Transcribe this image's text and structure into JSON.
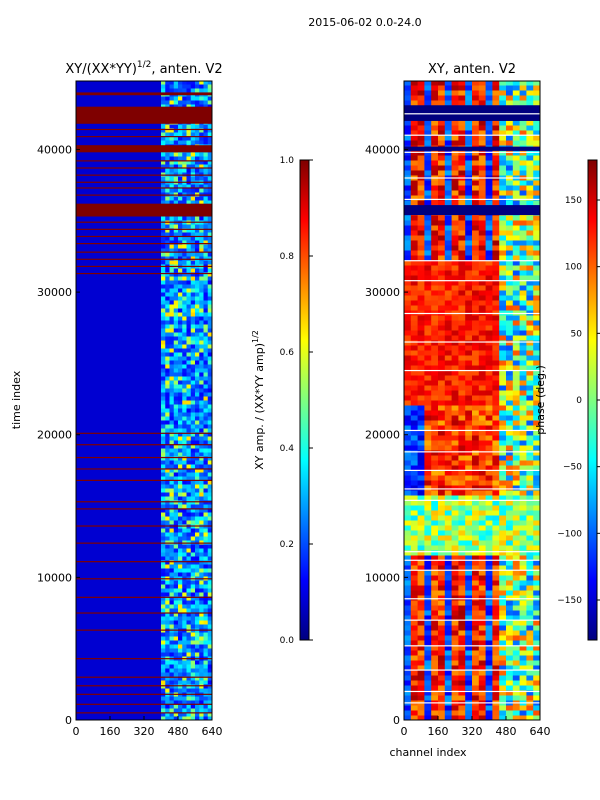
{
  "figure_title": "2015-06-02 0.0-24.0",
  "colors": {
    "flagged": "#7f0000",
    "frame": "#000000",
    "text": "#000000",
    "jet_stops": [
      "#00007f",
      "#0000ff",
      "#007fff",
      "#00ffff",
      "#7fff7f",
      "#ffff00",
      "#ff7f00",
      "#ff0000",
      "#7f0000"
    ]
  },
  "chart_data": [
    {
      "type": "heatmap",
      "id": "amplitude",
      "title_main": "XY/(XX*YY)",
      "title_exp": "1/2",
      "title_tail": ", anten. V2",
      "xlabel": "",
      "ylabel": "time index",
      "xlim": [
        0,
        640
      ],
      "ylim": [
        0,
        44800
      ],
      "xticks": [
        0,
        160,
        320,
        480,
        640
      ],
      "yticks": [
        0,
        10000,
        20000,
        30000,
        40000
      ],
      "colorbar": {
        "label_main": "XY amp. / (XX*YY amp)",
        "label_exp": "1/2",
        "range": [
          0.0,
          1.0
        ],
        "ticks": [
          "0.0",
          "0.2",
          "0.4",
          "0.6",
          "0.8",
          "1.0"
        ],
        "tick_values": [
          0.0,
          0.2,
          0.4,
          0.6,
          0.8,
          1.0
        ]
      },
      "background_level": 0.08,
      "flagged_time_ranges": [
        [
          35300,
          36200
        ],
        [
          39800,
          40300
        ],
        [
          41800,
          43000
        ],
        [
          43800,
          44000
        ]
      ],
      "flagged_lines": [
        500,
        1100,
        1800,
        2400,
        3000,
        4300,
        6300,
        7500,
        8600,
        9900,
        11100,
        12400,
        13600,
        14800,
        15300,
        16800,
        17600,
        18400,
        19300,
        20100,
        31300,
        31800,
        32300,
        32800,
        33400,
        33900,
        34400,
        34900,
        36800,
        37300,
        37700,
        38200,
        38700,
        39200,
        40900,
        41400
      ],
      "bright_channel_range": [
        400,
        640
      ]
    },
    {
      "type": "heatmap",
      "id": "phase",
      "title": "XY, anten. V2",
      "xlabel": "channel index",
      "ylabel": "",
      "xlim": [
        0,
        640
      ],
      "ylim": [
        0,
        44800
      ],
      "xticks": [
        0,
        160,
        320,
        480,
        640
      ],
      "yticks": [
        0,
        10000,
        20000,
        30000,
        40000
      ],
      "colorbar": {
        "label": "phase (deg.)",
        "range": [
          -180,
          180
        ],
        "ticks": [
          "−150",
          "−100",
          "−50",
          "0",
          "50",
          "100",
          "150"
        ],
        "tick_values": [
          -150,
          -100,
          -50,
          0,
          50,
          100,
          150
        ]
      },
      "white_lines": [
        1200,
        2000,
        3500,
        5200,
        7000,
        8500,
        10500,
        11200,
        11800,
        15400,
        16200,
        17500,
        18800,
        20300,
        24500,
        26500,
        28500,
        30800,
        32200,
        36500,
        38000,
        39800,
        41000,
        42500
      ],
      "flagged_blue_ranges": [
        [
          35400,
          36100
        ],
        [
          39900,
          40200
        ],
        [
          42000,
          43100
        ]
      ]
    }
  ]
}
